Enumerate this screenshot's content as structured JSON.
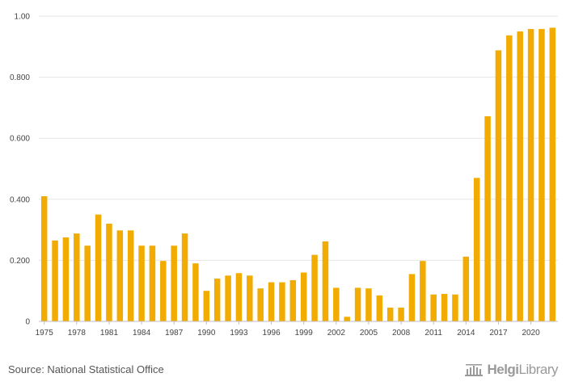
{
  "chart_data": {
    "type": "bar",
    "title": "",
    "xlabel": "",
    "ylabel": "",
    "ylim": [
      0,
      1.0
    ],
    "yticks": [
      {
        "value": 0,
        "label": "0"
      },
      {
        "value": 0.2,
        "label": "0.200"
      },
      {
        "value": 0.4,
        "label": "0.400"
      },
      {
        "value": 0.6,
        "label": "0.600"
      },
      {
        "value": 0.8,
        "label": "0.800"
      },
      {
        "value": 1.0,
        "label": "1.00"
      }
    ],
    "x_tick_labels": [
      "1975",
      "1978",
      "1981",
      "1984",
      "1987",
      "1990",
      "1993",
      "1996",
      "1999",
      "2002",
      "2005",
      "2008",
      "2011",
      "2014",
      "2017",
      "2020"
    ],
    "categories": [
      "1975",
      "1976",
      "1977",
      "1978",
      "1979",
      "1980",
      "1981",
      "1982",
      "1983",
      "1984",
      "1985",
      "1986",
      "1987",
      "1988",
      "1989",
      "1990",
      "1991",
      "1992",
      "1993",
      "1994",
      "1995",
      "1996",
      "1997",
      "1998",
      "1999",
      "2000",
      "2001",
      "2002",
      "2003",
      "2004",
      "2005",
      "2006",
      "2007",
      "2008",
      "2009",
      "2010",
      "2011",
      "2012",
      "2013",
      "2014",
      "2015",
      "2016",
      "2017",
      "2018",
      "2019",
      "2020",
      "2021",
      "2022"
    ],
    "values": [
      0.41,
      0.265,
      0.275,
      0.288,
      0.248,
      0.35,
      0.32,
      0.298,
      0.298,
      0.248,
      0.248,
      0.198,
      0.248,
      0.288,
      0.19,
      0.1,
      0.14,
      0.15,
      0.158,
      0.15,
      0.108,
      0.128,
      0.128,
      0.135,
      0.16,
      0.218,
      0.262,
      0.11,
      0.015,
      0.11,
      0.108,
      0.085,
      0.045,
      0.045,
      0.155,
      0.198,
      0.088,
      0.09,
      0.088,
      0.212,
      0.47,
      0.672,
      0.888,
      0.937,
      0.95,
      0.958,
      0.958,
      0.962
    ],
    "bar_color": "#f2ab00",
    "grid": true
  },
  "footer": {
    "source": "Source: National Statistical Office",
    "logo_strong": "Helgi",
    "logo_light": "Library",
    "logo_icon": "library-building-icon"
  }
}
